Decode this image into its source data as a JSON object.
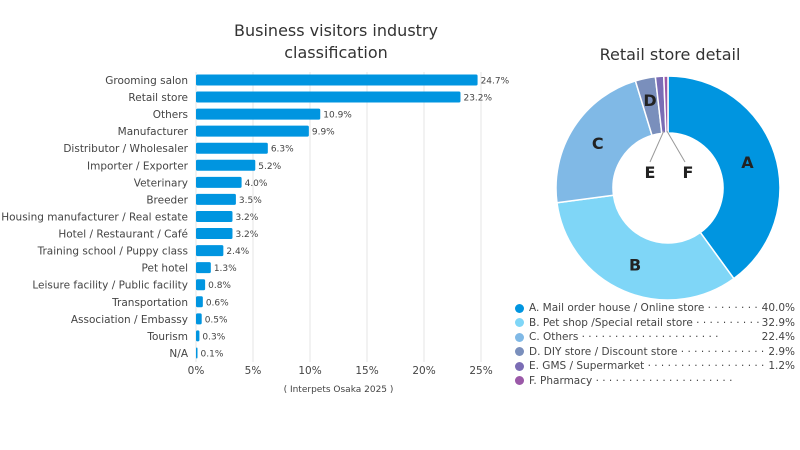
{
  "chart_data": [
    {
      "type": "bar",
      "orientation": "horizontal",
      "title": "Business visitors industry classification",
      "categories": [
        "Grooming salon",
        "Retail store",
        "Others",
        "Manufacturer",
        "Distributor / Wholesaler",
        "Importer / Exporter",
        "Veterinary",
        "Breeder",
        "Housing manufacturer / Real estate",
        "Hotel / Restaurant / Café",
        "Training school / Puppy class",
        "Pet hotel",
        "Leisure facility / Public facility",
        "Transportation",
        "Association / Embassy",
        "Tourism",
        "N/A"
      ],
      "values": [
        24.7,
        23.2,
        10.9,
        9.9,
        6.3,
        5.2,
        4.0,
        3.5,
        3.2,
        3.2,
        2.4,
        1.3,
        0.8,
        0.6,
        0.5,
        0.3,
        0.1
      ],
      "value_labels": [
        "24.7%",
        "23.2%",
        "10.9%",
        "9.9%",
        "6.3%",
        "5.2%",
        "4.0%",
        "3.5%",
        "3.2%",
        "3.2%",
        "2.4%",
        "1.3%",
        "0.8%",
        "0.6%",
        "0.5%",
        "0.3%",
        "0.1%"
      ],
      "xlim": [
        0,
        25
      ],
      "xticks": [
        "0%",
        "5%",
        "10%",
        "15%",
        "20%",
        "25%"
      ],
      "grid": true,
      "color": "#0095e0",
      "note": "( Interpets Osaka 2025 )"
    },
    {
      "type": "pie",
      "donut": true,
      "title": "Retail store detail",
      "slices": [
        {
          "key": "A",
          "label": "A. Mail order house / Online store",
          "value": 40.0,
          "value_label": "40.0%",
          "color": "#0095e0"
        },
        {
          "key": "B",
          "label": "B. Pet shop /Special retail store",
          "value": 32.9,
          "value_label": "32.9%",
          "color": "#7fd6f7"
        },
        {
          "key": "C",
          "label": "C. Others",
          "value": 22.4,
          "value_label": "22.4%",
          "color": "#80b9e6"
        },
        {
          "key": "D",
          "label": "D. DIY store / Discount store",
          "value": 2.9,
          "value_label": "2.9%",
          "color": "#7a8fbc"
        },
        {
          "key": "E",
          "label": "E. GMS / Supermarket",
          "value": 1.2,
          "value_label": "1.2%",
          "color": "#7b6db5"
        },
        {
          "key": "F",
          "label": "F. Pharmacy",
          "value": 0.6,
          "value_label": "",
          "color": "#9b59a8"
        }
      ],
      "legend": "bottom"
    }
  ]
}
